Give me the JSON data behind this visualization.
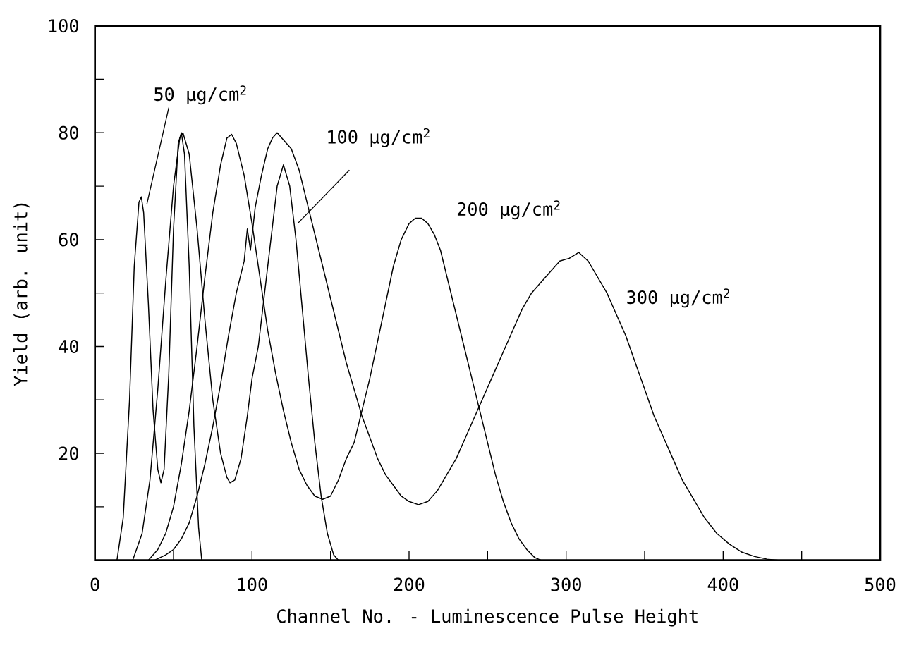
{
  "chart_data": {
    "type": "line",
    "xlabel": "Channel No. - Luminescence Pulse Height",
    "ylabel": "Yield  (arb. unit)",
    "xlim": [
      0,
      500
    ],
    "ylim": [
      0,
      100
    ],
    "xticks": [
      0,
      {
        "value": 50,
        "label": null
      },
      100,
      {
        "value": 150,
        "label": null
      },
      200,
      {
        "value": 250,
        "label": null
      },
      300,
      {
        "value": 350,
        "label": null
      },
      400,
      {
        "value": 450,
        "label": null
      },
      500
    ],
    "yticks": [
      {
        "value": 0,
        "label": null
      },
      {
        "value": 10,
        "label": null
      },
      20,
      {
        "value": 30,
        "label": null
      },
      40,
      {
        "value": 50,
        "label": null
      },
      60,
      {
        "value": 70,
        "label": null
      },
      80,
      {
        "value": 90,
        "label": null
      },
      100
    ],
    "series": [
      {
        "name": "50 µg/cm$^{2}$",
        "color": "#000000",
        "x": [
          14,
          18,
          22,
          25,
          28,
          29.5,
          31,
          34,
          37,
          40,
          42,
          44,
          47,
          50,
          53,
          55,
          57,
          60,
          63,
          66,
          68
        ],
        "values": [
          0,
          8,
          30,
          55,
          67,
          68,
          65,
          48,
          28,
          17,
          14.5,
          17,
          35,
          62,
          78,
          80,
          76,
          55,
          25,
          6,
          0
        ]
      },
      {
        "name": "100 µg/cm$^{2}$",
        "color": "#000000",
        "x": [
          24,
          30,
          35,
          40,
          45,
          50,
          54,
          56,
          60,
          65,
          70,
          75,
          80,
          84,
          86,
          89,
          93,
          97,
          100,
          104,
          108,
          112,
          116,
          120,
          124,
          128,
          132,
          136,
          140,
          144,
          148,
          152,
          155
        ],
        "values": [
          0,
          5,
          15,
          32,
          52,
          70,
          79,
          80,
          76,
          62,
          45,
          30,
          20,
          15.5,
          14.5,
          15,
          19,
          27,
          34,
          40,
          50,
          60,
          70,
          74,
          70,
          60,
          47,
          34,
          22,
          12,
          5,
          1,
          0
        ]
      },
      {
        "name": "200 µg/cm$^{2}$",
        "color": "#000000",
        "x": [
          34,
          40,
          45,
          50,
          55,
          60,
          65,
          70,
          75,
          80,
          84,
          87,
          90,
          95,
          100,
          105,
          110,
          115,
          120,
          125,
          130,
          135,
          140,
          145,
          150,
          155,
          160,
          165,
          170,
          175,
          180,
          185,
          190,
          195,
          200,
          204,
          208,
          212,
          216,
          220,
          225,
          230,
          235,
          240,
          245,
          250,
          255,
          260,
          265,
          270,
          275,
          280,
          284
        ],
        "values": [
          0,
          2,
          5,
          10,
          18,
          28,
          40,
          53,
          65,
          74,
          79,
          79.7,
          78,
          72,
          63,
          53,
          43,
          35,
          28,
          22,
          17,
          14,
          12,
          11.4,
          12,
          15,
          19,
          22,
          28,
          34,
          41,
          48,
          55,
          60,
          63,
          64,
          64,
          63,
          61,
          58,
          52,
          46,
          40,
          34,
          28,
          22,
          16,
          11,
          7,
          4,
          2,
          0.5,
          0
        ]
      },
      {
        "name": "300 µg/cm$^{2}$",
        "color": "#000000",
        "x": [
          38,
          45,
          50,
          55,
          60,
          65,
          70,
          75,
          80,
          85,
          90,
          95,
          97,
          99,
          102,
          106,
          110,
          113,
          116,
          119,
          122,
          125,
          130,
          135,
          140,
          145,
          150,
          155,
          160,
          165,
          170,
          175,
          180,
          185,
          190,
          195,
          200,
          206,
          212,
          218,
          224,
          230,
          236,
          242,
          248,
          254,
          260,
          266,
          272,
          278,
          284,
          290,
          296,
          302,
          308,
          314,
          320,
          326,
          332,
          338,
          344,
          350,
          356,
          362,
          368,
          374,
          380,
          388,
          396,
          404,
          412,
          420,
          428,
          435
        ],
        "values": [
          0,
          1,
          2,
          4,
          7,
          12,
          18,
          25,
          33,
          42,
          50,
          56,
          62,
          58,
          66,
          72,
          77,
          79,
          80,
          79,
          78,
          77,
          73,
          67,
          61,
          55,
          49,
          43,
          37,
          32,
          27,
          23,
          19,
          16,
          14,
          12,
          11,
          10.4,
          11,
          13,
          16,
          19,
          23,
          27,
          31,
          35,
          39,
          43,
          47,
          50,
          52,
          54,
          56,
          56.5,
          57.6,
          56,
          53,
          50,
          46,
          42,
          37,
          32,
          27,
          23,
          19,
          15,
          12,
          8,
          5,
          3,
          1.5,
          0.7,
          0.2,
          0
        ]
      }
    ]
  }
}
